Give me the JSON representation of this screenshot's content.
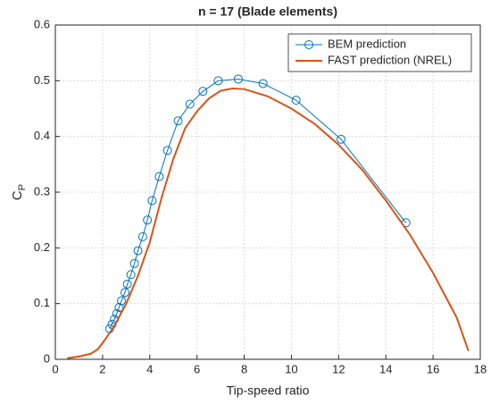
{
  "chart_data": {
    "type": "line",
    "title": "n = 17 (Blade elements)",
    "xlabel": "Tip-speed ratio",
    "ylabel": {
      "text": "C",
      "subscript": "P"
    },
    "xlim": [
      0,
      18
    ],
    "xticks": [
      0,
      2,
      4,
      6,
      8,
      10,
      12,
      14,
      16,
      18
    ],
    "ylim": [
      0,
      0.6
    ],
    "yticks": [
      0,
      0.1,
      0.2,
      0.3,
      0.4,
      0.5,
      0.6
    ],
    "grid": true,
    "legend": "top-right",
    "series": [
      {
        "name": "BEM prediction",
        "color": "#0072bd",
        "marker": "circle",
        "x": [
          2.3,
          2.4,
          2.5,
          2.6,
          2.7,
          2.8,
          2.95,
          3.05,
          3.2,
          3.35,
          3.5,
          3.7,
          3.9,
          4.1,
          4.4,
          4.75,
          5.2,
          5.7,
          6.25,
          6.9,
          7.75,
          8.8,
          10.2,
          12.1,
          14.85
        ],
        "values": [
          0.055,
          0.063,
          0.072,
          0.082,
          0.093,
          0.105,
          0.12,
          0.135,
          0.152,
          0.172,
          0.195,
          0.22,
          0.25,
          0.285,
          0.328,
          0.375,
          0.428,
          0.458,
          0.481,
          0.5,
          0.503,
          0.495,
          0.465,
          0.395,
          0.245
        ]
      },
      {
        "name": "FAST prediction (NREL)",
        "color": "#d95319",
        "marker": "none",
        "x": [
          0.5,
          1,
          1.5,
          1.8,
          2.1,
          2.5,
          3,
          3.5,
          4,
          4.5,
          5,
          5.5,
          6,
          6.5,
          7,
          7.5,
          8,
          9,
          10,
          11,
          12,
          13,
          14,
          15,
          16,
          17,
          17.5
        ],
        "values": [
          0.002,
          0.005,
          0.01,
          0.018,
          0.035,
          0.06,
          0.1,
          0.15,
          0.21,
          0.29,
          0.36,
          0.415,
          0.445,
          0.468,
          0.482,
          0.486,
          0.485,
          0.472,
          0.45,
          0.422,
          0.385,
          0.34,
          0.285,
          0.225,
          0.155,
          0.075,
          0.015
        ]
      }
    ]
  }
}
